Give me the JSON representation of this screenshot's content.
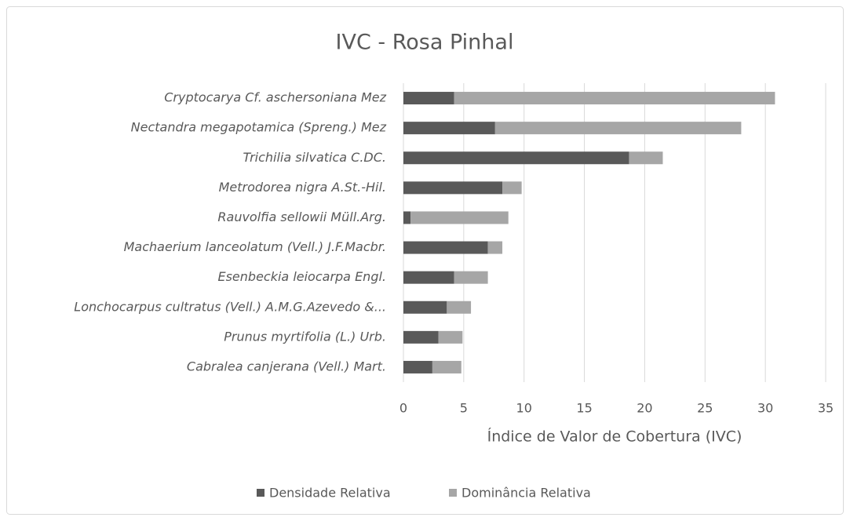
{
  "chart_data": {
    "type": "stacked_barh",
    "title": "IVC - Rosa Pinhal",
    "xlabel": "Índice de Valor de Cobertura (IVC)",
    "categories": [
      "Cryptocarya Cf. aschersoniana Mez",
      "Nectandra megapotamica (Spreng.) Mez",
      "Trichilia silvatica C.DC.",
      "Metrodorea nigra A.St.-Hil.",
      "Rauvolfia sellowii Müll.Arg.",
      "Machaerium lanceolatum (Vell.) J.F.Macbr.",
      "Esenbeckia leiocarpa Engl.",
      "Lonchocarpus cultratus (Vell.) A.M.G.Azevedo &...",
      "Prunus myrtifolia (L.) Urb.",
      "Cabralea canjerana (Vell.) Mart."
    ],
    "series": [
      {
        "name": "Densidade Relativa",
        "color": "#595959",
        "values": [
          4.2,
          7.6,
          18.7,
          8.2,
          0.6,
          7.0,
          4.2,
          3.6,
          2.9,
          2.4
        ]
      },
      {
        "name": "Dominância Relativa",
        "color": "#a6a6a6",
        "values": [
          26.6,
          20.4,
          2.8,
          1.6,
          8.1,
          1.2,
          2.8,
          2.0,
          2.0,
          2.4
        ]
      }
    ],
    "xlim": [
      0,
      35
    ],
    "xticks": [
      0,
      5,
      10,
      15,
      20,
      25,
      30,
      35
    ],
    "grid": true,
    "legend": "bottom"
  }
}
